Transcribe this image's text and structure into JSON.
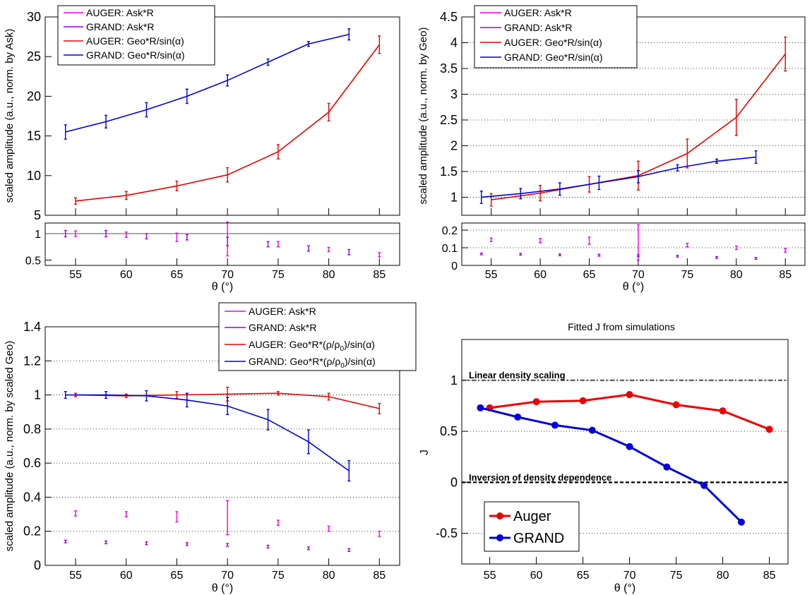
{
  "colors": {
    "auger_ask": "#ee00ee",
    "grand_ask": "#9900ee",
    "auger_geo": "#ee0000",
    "grand_geo": "#0000dd",
    "grid": "#000000",
    "reference_line": "#555555"
  },
  "chart_data": [
    {
      "type": "line",
      "xlabel": "θ (°)",
      "ylabel": "scaled amplitude (a.u., norm. by Ask)",
      "xlim": [
        52,
        87
      ],
      "ylim": [
        5,
        30
      ],
      "x_ticks": [
        55,
        60,
        65,
        70,
        75,
        80,
        85
      ],
      "y_ticks": [
        5,
        10,
        15,
        20,
        25,
        30
      ],
      "grid": "horizontal dotted",
      "legend_position": "top-left",
      "legend": [
        "AUGER: Ask*R",
        "GRAND: Ask*R",
        "AUGER: Geo*R/sin(α)",
        "GRAND: Geo*R/sin(α)"
      ],
      "series": [
        {
          "name": "AUGER: Geo*R/sin(α)",
          "x": [
            55,
            60,
            65,
            70,
            75,
            80,
            85
          ],
          "y": [
            6.8,
            7.5,
            8.7,
            10.1,
            13.0,
            18.0,
            26.5
          ],
          "err": [
            0.4,
            0.5,
            0.6,
            0.9,
            0.9,
            1.1,
            1.1
          ]
        },
        {
          "name": "GRAND: Geo*R/sin(α)",
          "x": [
            54,
            58,
            62,
            66,
            70,
            74,
            78,
            82
          ],
          "y": [
            15.5,
            16.8,
            18.3,
            20.0,
            22.0,
            24.3,
            26.6,
            27.8
          ],
          "err": [
            0.9,
            0.8,
            0.9,
            0.9,
            0.7,
            0.4,
            0.3,
            0.7
          ]
        }
      ],
      "ratio_panel": {
        "ylim": [
          0.4,
          1.2
        ],
        "y_ticks": [
          0.5,
          1
        ],
        "reference_line": 1,
        "series": [
          {
            "name": "AUGER: Ask*R",
            "x": [
              55,
              60,
              65,
              70,
              75,
              80,
              85
            ],
            "y": [
              1.0,
              0.98,
              0.93,
              0.9,
              0.8,
              0.7,
              0.6
            ],
            "err": [
              0.05,
              0.05,
              0.08,
              0.32,
              0.05,
              0.04,
              0.04
            ]
          },
          {
            "name": "GRAND: Ask*R",
            "x": [
              54,
              58,
              62,
              66,
              70,
              74,
              78,
              82
            ],
            "y": [
              1.0,
              1.0,
              0.95,
              0.93,
              0.85,
              0.8,
              0.72,
              0.65
            ],
            "err": [
              0.06,
              0.06,
              0.05,
              0.05,
              0.08,
              0.05,
              0.05,
              0.05
            ]
          }
        ]
      }
    },
    {
      "type": "line",
      "xlabel": "θ (°)",
      "ylabel": "scaled amplitude (a.u., norm. by Geo)",
      "xlim": [
        52,
        87
      ],
      "ylim": [
        0.65,
        4.5
      ],
      "x_ticks": [
        55,
        60,
        65,
        70,
        75,
        80,
        85
      ],
      "y_ticks": [
        1,
        1.5,
        2,
        2.5,
        3,
        3.5,
        4,
        4.5
      ],
      "grid": "horizontal dotted",
      "legend_position": "top-left",
      "legend": [
        "AUGER: Ask*R",
        "GRAND: Ask*R",
        "AUGER: Geo*R/sin(α)",
        "GRAND: Geo*R/sin(α)"
      ],
      "series": [
        {
          "name": "AUGER: Geo*R/sin(α)",
          "x": [
            55,
            60,
            65,
            70,
            75,
            80,
            85
          ],
          "y": [
            0.95,
            1.08,
            1.25,
            1.42,
            1.85,
            2.55,
            3.78
          ],
          "err": [
            0.12,
            0.15,
            0.15,
            0.28,
            0.28,
            0.35,
            0.33
          ]
        },
        {
          "name": "GRAND: Geo*R/sin(α)",
          "x": [
            54,
            58,
            62,
            66,
            70,
            74,
            78,
            82
          ],
          "y": [
            1.0,
            1.07,
            1.16,
            1.28,
            1.4,
            1.57,
            1.7,
            1.78
          ],
          "err": [
            0.12,
            0.1,
            0.12,
            0.13,
            0.12,
            0.06,
            0.04,
            0.12
          ]
        }
      ],
      "ratio_panel": {
        "ylim": [
          0,
          0.24
        ],
        "y_ticks": [
          0,
          0.1,
          0.2
        ],
        "reference_line": 0,
        "series": [
          {
            "name": "AUGER: Ask*R",
            "x": [
              55,
              60,
              65,
              70,
              75,
              80,
              85
            ],
            "y": [
              0.145,
              0.14,
              0.14,
              0.13,
              0.115,
              0.1,
              0.085
            ],
            "err": [
              0.01,
              0.012,
              0.02,
              0.1,
              0.01,
              0.01,
              0.01
            ]
          },
          {
            "name": "GRAND: Ask*R",
            "x": [
              54,
              58,
              62,
              66,
              70,
              74,
              78,
              82
            ],
            "y": [
              0.065,
              0.063,
              0.06,
              0.058,
              0.055,
              0.052,
              0.045,
              0.04
            ],
            "err": [
              0.005,
              0.005,
              0.005,
              0.005,
              0.005,
              0.005,
              0.005,
              0.005
            ]
          }
        ]
      }
    },
    {
      "type": "line",
      "xlabel": "θ (°)",
      "ylabel": "scaled amplitude (a.u., norm. by scaled Geo)",
      "xlim": [
        52,
        87
      ],
      "ylim": [
        0,
        1.4
      ],
      "x_ticks": [
        55,
        60,
        65,
        70,
        75,
        80,
        85
      ],
      "y_ticks": [
        0,
        0.2,
        0.4,
        0.6,
        0.8,
        1,
        1.2,
        1.4
      ],
      "grid": "horizontal dotted",
      "legend_position": "top-right",
      "legend": [
        "AUGER: Ask*R",
        "GRAND: Ask*R",
        "AUGER: Geo*R*(ρ/ρ0)/sin(α)",
        "GRAND: Geo*R*(ρ/ρ0)/sin(α)"
      ],
      "series": [
        {
          "name": "AUGER: Geo*R*(ρ/ρ0)/sin(α)",
          "x": [
            55,
            60,
            65,
            70,
            75,
            80,
            85
          ],
          "y": [
            1.0,
            0.995,
            1.0,
            1.005,
            1.01,
            0.99,
            0.92
          ],
          "err": [
            0.01,
            0.01,
            0.02,
            0.04,
            0.01,
            0.02,
            0.03
          ]
        },
        {
          "name": "GRAND: Geo*R*(ρ/ρ0)/sin(α)",
          "x": [
            54,
            58,
            62,
            66,
            70,
            74,
            78,
            82
          ],
          "y": [
            1.0,
            1.0,
            0.995,
            0.97,
            0.935,
            0.855,
            0.725,
            0.555
          ],
          "err": [
            0.02,
            0.02,
            0.03,
            0.04,
            0.05,
            0.06,
            0.07,
            0.06
          ]
        },
        {
          "name": "AUGER: Ask*R",
          "x": [
            55,
            60,
            65,
            70,
            75,
            80,
            85
          ],
          "y": [
            0.305,
            0.3,
            0.285,
            0.28,
            0.25,
            0.215,
            0.185
          ],
          "err": [
            0.015,
            0.015,
            0.03,
            0.1,
            0.015,
            0.015,
            0.015
          ],
          "markers_only": true
        },
        {
          "name": "GRAND: Ask*R",
          "x": [
            54,
            58,
            62,
            66,
            70,
            74,
            78,
            82
          ],
          "y": [
            0.14,
            0.135,
            0.13,
            0.125,
            0.12,
            0.11,
            0.1,
            0.09
          ],
          "err": [
            0.008,
            0.008,
            0.008,
            0.008,
            0.008,
            0.008,
            0.008,
            0.008
          ],
          "markers_only": true
        }
      ]
    },
    {
      "type": "line",
      "title": "Fitted J from simulations",
      "xlabel": "θ (°)",
      "ylabel": "J",
      "xlim": [
        52,
        87
      ],
      "ylim": [
        -0.8,
        1.4
      ],
      "x_ticks": [
        55,
        60,
        65,
        70,
        75,
        80,
        85
      ],
      "y_ticks": [
        -0.5,
        0,
        0.5,
        1
      ],
      "grid": "horizontal dotted",
      "legend_position": "bottom-left",
      "legend": [
        "Auger",
        "GRAND"
      ],
      "reference_lines": [
        {
          "y": 1,
          "label": "Linear density scaling"
        },
        {
          "y": 0,
          "label": "Inversion of density dependence"
        }
      ],
      "series": [
        {
          "name": "Auger",
          "x": [
            55,
            60,
            65,
            70,
            75,
            80,
            85
          ],
          "y": [
            0.73,
            0.79,
            0.8,
            0.86,
            0.76,
            0.7,
            0.52
          ]
        },
        {
          "name": "GRAND",
          "x": [
            54,
            58,
            62,
            66,
            70,
            74,
            78,
            82
          ],
          "y": [
            0.73,
            0.64,
            0.56,
            0.51,
            0.35,
            0.15,
            -0.03,
            -0.39
          ]
        }
      ]
    }
  ]
}
